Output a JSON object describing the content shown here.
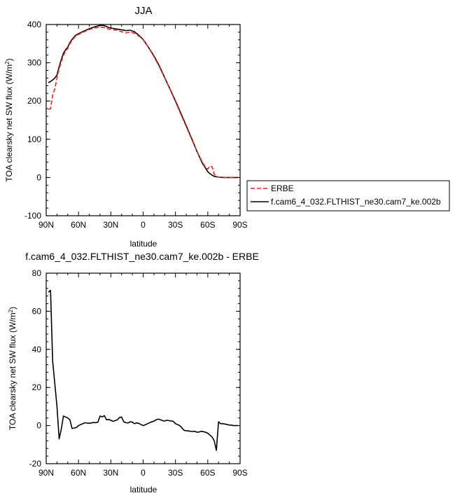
{
  "chart_data": [
    {
      "type": "line",
      "title": "JJA",
      "xlabel": "latitude",
      "ylabel": "TOA clearsky net SW flux (W/m",
      "ylabel_sup": "2",
      "ylabel_end": ")",
      "xlim": [
        90,
        -90
      ],
      "ylim": [
        -100,
        400
      ],
      "x_ticks": [
        90,
        60,
        30,
        0,
        -30,
        -60,
        -90
      ],
      "x_tick_labels": [
        "90N",
        "60N",
        "30N",
        "0",
        "30S",
        "60S",
        "90S"
      ],
      "y_ticks": [
        -100,
        0,
        100,
        200,
        300,
        400
      ],
      "y_tick_labels": [
        "-100",
        "0",
        "100",
        "200",
        "300",
        "400"
      ],
      "grid": false,
      "legend_position": "right-outside",
      "series": [
        {
          "name": "ERBE",
          "color": "#e8231f",
          "style": "dashed",
          "x": [
            88,
            86,
            84,
            82,
            80,
            78,
            76,
            74,
            72,
            70,
            68,
            66,
            64,
            62,
            60,
            55,
            50,
            45,
            40,
            36,
            32,
            28,
            24,
            20,
            16,
            12,
            8,
            4,
            0,
            -5,
            -10,
            -15,
            -20,
            -25,
            -30,
            -35,
            -40,
            -45,
            -50,
            -55,
            -58,
            -60,
            -62,
            -64,
            -66,
            -68,
            -70,
            -75,
            -80,
            -85,
            -88
          ],
          "y": [
            178,
            180,
            215,
            232,
            260,
            285,
            303,
            320,
            330,
            338,
            350,
            358,
            366,
            371,
            374,
            381,
            387,
            391,
            393,
            392,
            388,
            386,
            385,
            381,
            378,
            380,
            377,
            370,
            360,
            340,
            316,
            290,
            260,
            230,
            198,
            165,
            133,
            100,
            68,
            40,
            26,
            22,
            30,
            28,
            8,
            3,
            1,
            0,
            0,
            0,
            0
          ]
        },
        {
          "name": "f.cam6_4_032.FLTHIST_ne30.cam7_ke.002b",
          "color": "#000000",
          "style": "solid",
          "x": [
            88,
            86,
            84,
            82,
            80,
            78,
            76,
            74,
            72,
            70,
            68,
            66,
            64,
            62,
            60,
            55,
            50,
            45,
            40,
            36,
            32,
            28,
            24,
            20,
            16,
            12,
            8,
            4,
            0,
            -5,
            -10,
            -15,
            -20,
            -25,
            -30,
            -35,
            -40,
            -45,
            -50,
            -55,
            -58,
            -60,
            -62,
            -64,
            -66,
            -68,
            -70,
            -75,
            -80,
            -85,
            -88
          ],
          "y": [
            248,
            251,
            255,
            260,
            268,
            290,
            308,
            325,
            334,
            341,
            353,
            361,
            368,
            373,
            376,
            383,
            389,
            394,
            398,
            397,
            392,
            390,
            388,
            386,
            384,
            385,
            381,
            372,
            361,
            340,
            318,
            292,
            261,
            231,
            200,
            168,
            135,
            102,
            68,
            37,
            24,
            15,
            10,
            6,
            3,
            2,
            1,
            0,
            0,
            0,
            0
          ]
        }
      ]
    },
    {
      "type": "line",
      "title": "f.cam6_4_032.FLTHIST_ne30.cam7_ke.002b - ERBE",
      "xlabel": "latitude",
      "ylabel": "TOA clearsky net SW flux (W/m",
      "ylabel_sup": "2",
      "ylabel_end": ")",
      "xlim": [
        90,
        -90
      ],
      "ylim": [
        -20,
        80
      ],
      "x_ticks": [
        90,
        60,
        30,
        0,
        -30,
        -60,
        -90
      ],
      "x_tick_labels": [
        "90N",
        "60N",
        "30N",
        "0",
        "30S",
        "60S",
        "90S"
      ],
      "y_ticks": [
        -20,
        0,
        20,
        40,
        60,
        80
      ],
      "y_tick_labels": [
        "-20",
        "0",
        "20",
        "40",
        "60",
        "80"
      ],
      "grid": false,
      "series": [
        {
          "color": "#000000",
          "style": "solid",
          "x": [
            88,
            86,
            84,
            82,
            80,
            78,
            76,
            74,
            72,
            70,
            68,
            66,
            64,
            62,
            60,
            58,
            56,
            54,
            52,
            50,
            48,
            46,
            44,
            42,
            40,
            38,
            36,
            34,
            32,
            30,
            28,
            26,
            24,
            22,
            20,
            18,
            16,
            14,
            12,
            10,
            8,
            6,
            4,
            2,
            0,
            -2,
            -4,
            -6,
            -8,
            -10,
            -12,
            -14,
            -16,
            -18,
            -20,
            -22,
            -24,
            -26,
            -28,
            -30,
            -32,
            -34,
            -36,
            -38,
            -40,
            -42,
            -44,
            -46,
            -48,
            -50,
            -52,
            -54,
            -56,
            -58,
            -60,
            -62,
            -64,
            -66,
            -68,
            -70,
            -72,
            -74,
            -76,
            -78,
            -80,
            -82,
            -84,
            -86,
            -88
          ],
          "y": [
            70,
            71,
            34,
            22,
            10,
            -7,
            -2,
            5,
            4.5,
            4,
            3,
            -1.5,
            -1.3,
            -1,
            0,
            0.5,
            1,
            1.5,
            1.3,
            1.2,
            1.4,
            1.6,
            1.5,
            1.8,
            5,
            4.6,
            5.2,
            3,
            3.2,
            2.8,
            2.2,
            2.6,
            3,
            4.2,
            4.5,
            2,
            1.5,
            1.4,
            2,
            1.8,
            1,
            1.4,
            1.2,
            0.5,
            0,
            0.4,
            1,
            1.5,
            2,
            2.3,
            3,
            3.4,
            3.1,
            2.6,
            2.4,
            2.8,
            2.6,
            2.4,
            2.2,
            1,
            0.5,
            0,
            -1.2,
            -2.5,
            -2.7,
            -2.8,
            -3,
            -3.1,
            -3,
            -3.5,
            -3.4,
            -3,
            -3.2,
            -3.5,
            -4,
            -5,
            -6,
            -8,
            -13,
            2,
            1,
            1,
            0.8,
            0.5,
            0.3,
            0.2,
            0,
            0,
            0
          ]
        }
      ]
    }
  ]
}
